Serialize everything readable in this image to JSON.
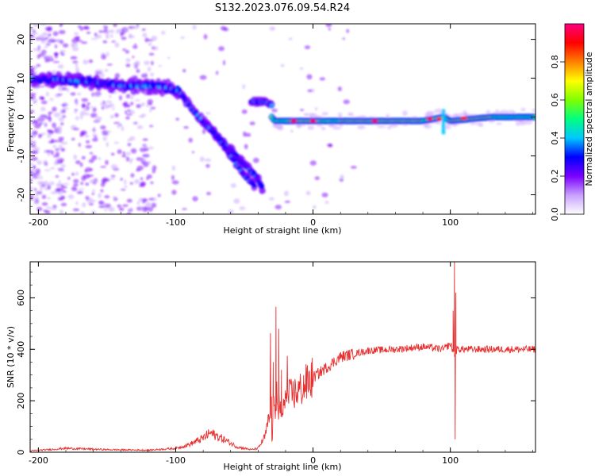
{
  "title": "S132.2023.076.09.54.R24",
  "chart_data": [
    {
      "type": "heatmap",
      "xlabel": "Height of straight line (km)",
      "ylabel": "Frequency (Hz)",
      "xlim": [
        -206,
        162
      ],
      "ylim": [
        -25,
        24
      ],
      "xticks": [
        -200,
        -100,
        0,
        100
      ],
      "yticks": [
        20,
        10,
        0,
        -10,
        -20
      ],
      "colorbar": {
        "label": "Normalized spectral amplitude",
        "range": [
          0,
          1
        ],
        "ticks": [
          "0.0",
          "0.2",
          "0.4",
          "0.6",
          "0.8"
        ],
        "tick_values": [
          0.0,
          0.2,
          0.4,
          0.6,
          0.8
        ],
        "colors": [
          "#ffffff",
          "#c8a0ff",
          "#7a00ff",
          "#0000ff",
          "#00c8ff",
          "#00ff80",
          "#80ff00",
          "#ffff00",
          "#ff8000",
          "#ff0000",
          "#ff0080"
        ]
      },
      "ridge": {
        "x": [
          -205,
          -180,
          -160,
          -140,
          -120,
          -105,
          -95,
          -85,
          -75,
          -65,
          -55,
          -45,
          -38,
          -32,
          -30,
          -28,
          -20,
          0,
          40,
          80,
          95,
          100,
          130,
          162
        ],
        "y": [
          10,
          9,
          9,
          8,
          8,
          7,
          5,
          0,
          -4,
          -8,
          -12,
          -16,
          -20,
          -5,
          0,
          -1,
          -1,
          -1,
          -1,
          -1,
          0,
          -1,
          0,
          0
        ]
      },
      "secondary_ridge": {
        "x": [
          -80,
          -70,
          -60,
          -50,
          -42
        ],
        "y": [
          -1,
          -5,
          -10,
          -15,
          -18
        ]
      },
      "branch": {
        "x": [
          -45,
          -40,
          -35,
          -30
        ],
        "y": [
          4,
          4,
          4,
          3
        ]
      }
    },
    {
      "type": "line",
      "xlabel": "Height of straight line (km)",
      "ylabel": "SNR (10 * v/v)",
      "xlim": [
        -206,
        162
      ],
      "ylim": [
        0,
        740
      ],
      "xticks": [
        -200,
        -100,
        0,
        100
      ],
      "yticks": [
        0,
        200,
        400,
        600
      ],
      "color": "#e83030",
      "envelope": {
        "x": [
          -206,
          -180,
          -150,
          -120,
          -100,
          -90,
          -80,
          -75,
          -65,
          -55,
          -45,
          -40,
          -35,
          -30,
          -25,
          -20,
          -10,
          0,
          10,
          20,
          40,
          60,
          80,
          95,
          100,
          103,
          105,
          108,
          120,
          140,
          162
        ],
        "y": [
          5,
          15,
          10,
          8,
          15,
          30,
          55,
          75,
          50,
          20,
          10,
          15,
          60,
          180,
          140,
          210,
          240,
          290,
          330,
          370,
          395,
          400,
          410,
          400,
          420,
          380,
          400,
          400,
          400,
          400,
          400
        ]
      },
      "spikes": [
        {
          "x": -27,
          "y": 565
        },
        {
          "x": -25,
          "y": 480
        },
        {
          "x": -29,
          "y": 350
        },
        {
          "x": -23,
          "y": 320
        },
        {
          "x": 102,
          "y": 550
        },
        {
          "x": 103,
          "y": 740
        },
        {
          "x": 103.5,
          "y": 50
        },
        {
          "x": 104,
          "y": 620
        }
      ]
    }
  ]
}
